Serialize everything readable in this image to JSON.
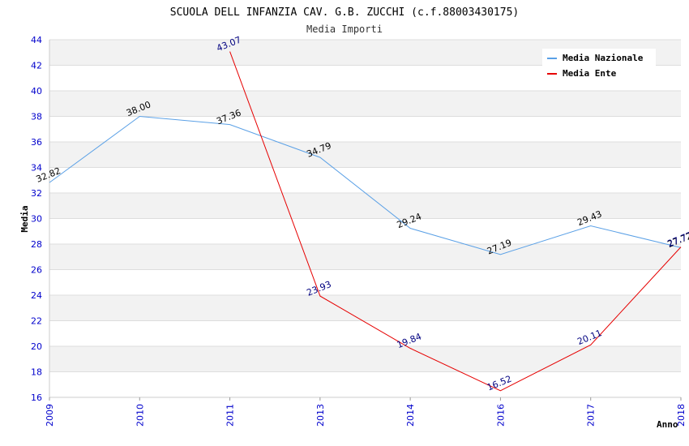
{
  "chart_data": {
    "type": "line",
    "title": "SCUOLA DELL INFANZIA CAV. G.B. ZUCCHI (c.f.88003430175)",
    "subtitle": "Media Importi",
    "xlabel": "Anno",
    "ylabel": "Media",
    "ylim": [
      16,
      44
    ],
    "yticks": [
      16,
      18,
      20,
      22,
      24,
      26,
      28,
      30,
      32,
      34,
      36,
      38,
      40,
      42,
      44
    ],
    "categories": [
      "2009",
      "2010",
      "2011",
      "2013",
      "2014",
      "2016",
      "2017",
      "2018"
    ],
    "legend_position": "top-right",
    "series": [
      {
        "name": "Media Nazionale",
        "color": "#5aa0e6",
        "values": [
          32.82,
          38.0,
          37.36,
          34.79,
          29.24,
          27.19,
          29.43,
          27.72
        ],
        "labels": [
          "32.82",
          "38.00",
          "37.36",
          "34.79",
          "29.24",
          "27.19",
          "29.43",
          "27.72"
        ]
      },
      {
        "name": "Media Ente",
        "color": "#e60000",
        "values": [
          null,
          null,
          43.07,
          23.93,
          19.84,
          16.52,
          20.11,
          27.77
        ],
        "labels": [
          null,
          null,
          "43.07",
          "23.93",
          "19.84",
          "16.52",
          "20.11",
          "27.77"
        ]
      }
    ]
  }
}
